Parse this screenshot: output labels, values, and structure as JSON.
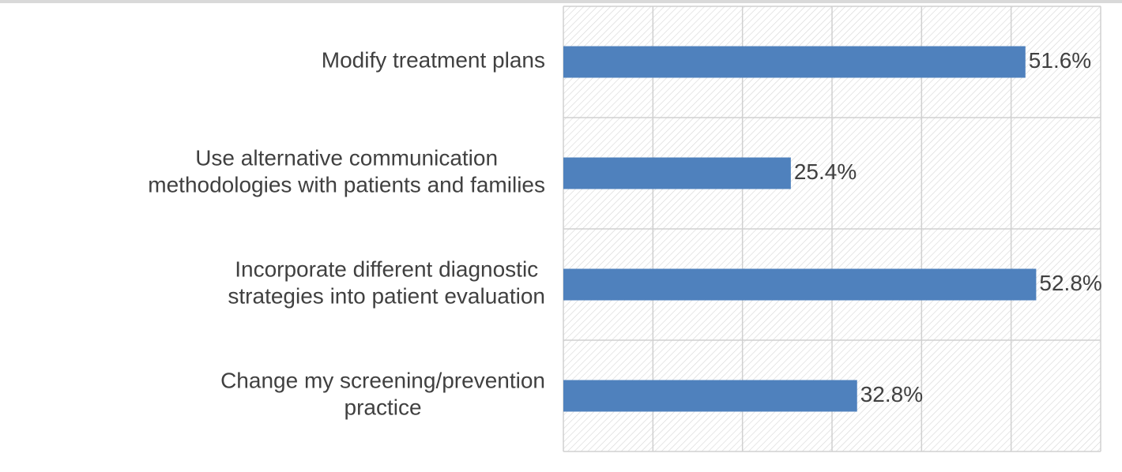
{
  "chart_data": {
    "type": "barh",
    "categories": [
      "Modify treatment plans",
      "Use alternative communication\nmethodologies with patients and families",
      "Incorporate different diagnostic\nstrategies into patient evaluation",
      "Change my screening/prevention\npractice"
    ],
    "values": [
      51.6,
      25.4,
      52.8,
      32.8
    ],
    "value_labels": [
      "51.6%",
      "25.4%",
      "52.8%",
      "32.8%"
    ],
    "color": "#4f81bd",
    "xlim": [
      0,
      60
    ],
    "xticks": [
      0,
      10,
      20,
      30,
      40,
      50,
      60
    ],
    "grid": true
  }
}
